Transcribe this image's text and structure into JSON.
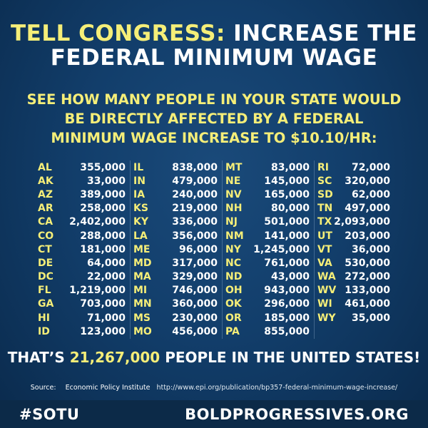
{
  "headline": {
    "line1_yellow": "TELL CONGRESS:",
    "line1_white": "INCREASE THE",
    "line2": "FEDERAL MINIMUM WAGE"
  },
  "subhead": [
    "SEE HOW MANY PEOPLE IN YOUR STATE WOULD",
    "BE DIRECTLY AFFECTED BY A FEDERAL",
    "MINIMUM WAGE INCREASE TO $10.10/HR:"
  ],
  "states": [
    [
      {
        "abbr": "AL",
        "value": "355,000"
      },
      {
        "abbr": "AK",
        "value": "33,000"
      },
      {
        "abbr": "AZ",
        "value": "389,000"
      },
      {
        "abbr": "AR",
        "value": "258,000"
      },
      {
        "abbr": "CA",
        "value": "2,402,000"
      },
      {
        "abbr": "CO",
        "value": "288,000"
      },
      {
        "abbr": "CT",
        "value": "181,000"
      },
      {
        "abbr": "DE",
        "value": "64,000"
      },
      {
        "abbr": "DC",
        "value": "22,000"
      },
      {
        "abbr": "FL",
        "value": "1,219,000"
      },
      {
        "abbr": "GA",
        "value": "703,000"
      },
      {
        "abbr": "HI",
        "value": "71,000"
      },
      {
        "abbr": "ID",
        "value": "123,000"
      }
    ],
    [
      {
        "abbr": "IL",
        "value": "838,000"
      },
      {
        "abbr": "IN",
        "value": "479,000"
      },
      {
        "abbr": "IA",
        "value": "240,000"
      },
      {
        "abbr": "KS",
        "value": "219,000"
      },
      {
        "abbr": "KY",
        "value": "336,000"
      },
      {
        "abbr": "LA",
        "value": "356,000"
      },
      {
        "abbr": "ME",
        "value": "96,000"
      },
      {
        "abbr": "MD",
        "value": "317,000"
      },
      {
        "abbr": "MA",
        "value": "329,000"
      },
      {
        "abbr": "MI",
        "value": "746,000"
      },
      {
        "abbr": "MN",
        "value": "360,000"
      },
      {
        "abbr": "MS",
        "value": "230,000"
      },
      {
        "abbr": "MO",
        "value": "456,000"
      }
    ],
    [
      {
        "abbr": "MT",
        "value": "83,000"
      },
      {
        "abbr": "NE",
        "value": "145,000"
      },
      {
        "abbr": "NV",
        "value": "165,000"
      },
      {
        "abbr": "NH",
        "value": "80,000"
      },
      {
        "abbr": "NJ",
        "value": "501,000"
      },
      {
        "abbr": "NM",
        "value": "141,000"
      },
      {
        "abbr": "NY",
        "value": "1,245,000"
      },
      {
        "abbr": "NC",
        "value": "761,000"
      },
      {
        "abbr": "ND",
        "value": "43,000"
      },
      {
        "abbr": "OH",
        "value": "943,000"
      },
      {
        "abbr": "OK",
        "value": "296,000"
      },
      {
        "abbr": "OR",
        "value": "185,000"
      },
      {
        "abbr": "PA",
        "value": "855,000"
      }
    ],
    [
      {
        "abbr": "RI",
        "value": "72,000"
      },
      {
        "abbr": "SC",
        "value": "320,000"
      },
      {
        "abbr": "SD",
        "value": "62,000"
      },
      {
        "abbr": "TN",
        "value": "497,000"
      },
      {
        "abbr": "TX",
        "value": "2,093,000"
      },
      {
        "abbr": "UT",
        "value": "203,000"
      },
      {
        "abbr": "VT",
        "value": "36,000"
      },
      {
        "abbr": "VA",
        "value": "530,000"
      },
      {
        "abbr": "WA",
        "value": "272,000"
      },
      {
        "abbr": "WV",
        "value": "133,000"
      },
      {
        "abbr": "WI",
        "value": "461,000"
      },
      {
        "abbr": "WY",
        "value": "35,000"
      }
    ]
  ],
  "total": {
    "prefix": "THAT’S",
    "number": "21,267,000",
    "suffix": "PEOPLE IN THE UNITED STATES!"
  },
  "source": {
    "label": "Source:",
    "org": "Economic Policy Institute",
    "url": "http://www.epi.org/publication/bp357-federal-minimum-wage-increase/"
  },
  "footer": {
    "hashtag": "#SOTU",
    "website": "BOLDPROGRESSIVES.ORG"
  },
  "colors": {
    "background": "#123e6b",
    "accent_yellow": "#f5ee78",
    "text_white": "#ffffff",
    "footer_bar": "#0c2a48"
  }
}
